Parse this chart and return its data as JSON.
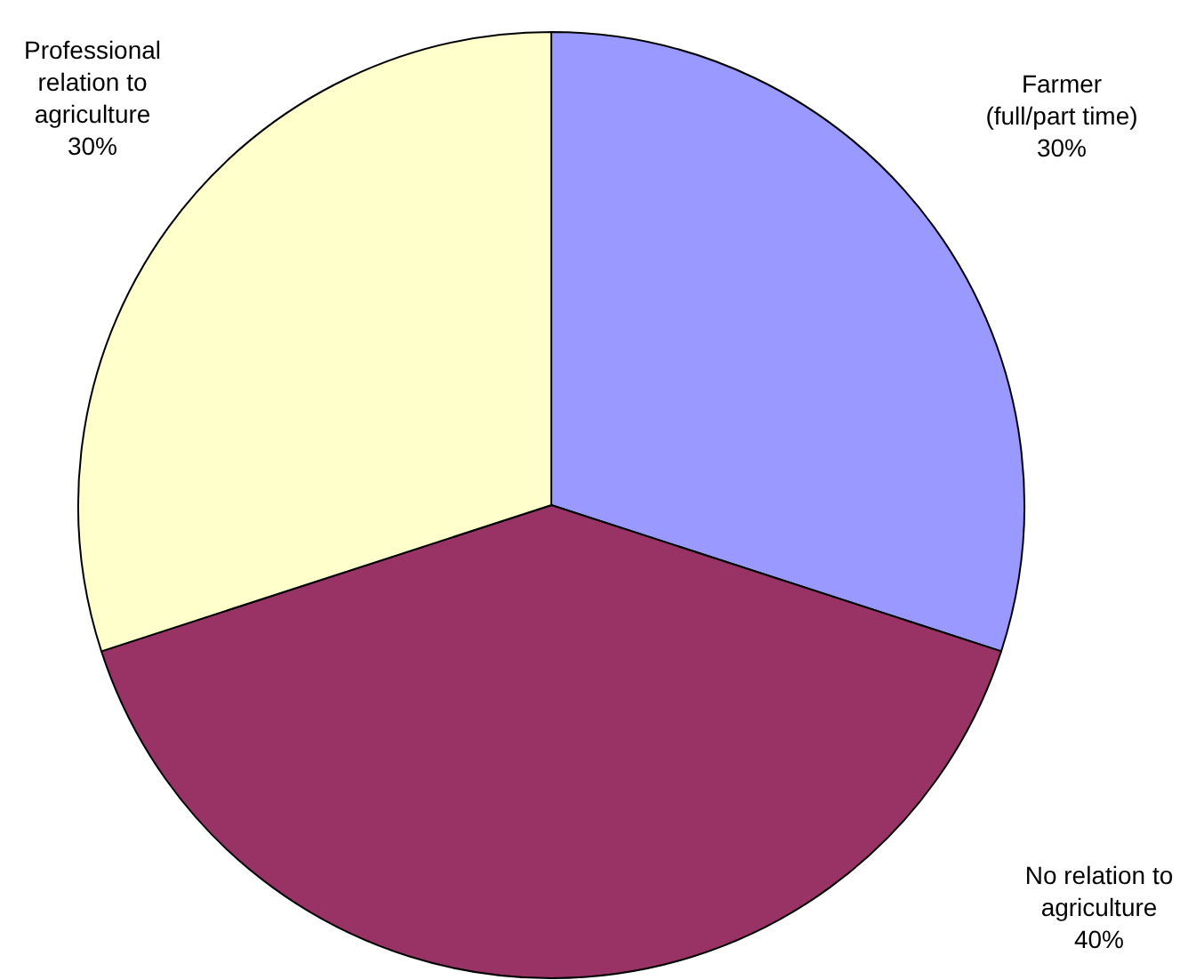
{
  "chart_data": {
    "type": "pie",
    "categories": [
      "Farmer\n(full/part time)",
      "No relation to\nagriculture",
      "Professional\nrelation to\nagriculture"
    ],
    "values": [
      30,
      40,
      30
    ],
    "colors": [
      "#9999ff",
      "#993366",
      "#ffffcc"
    ],
    "value_labels": [
      "30%",
      "40%",
      "30%"
    ],
    "legend": false
  }
}
